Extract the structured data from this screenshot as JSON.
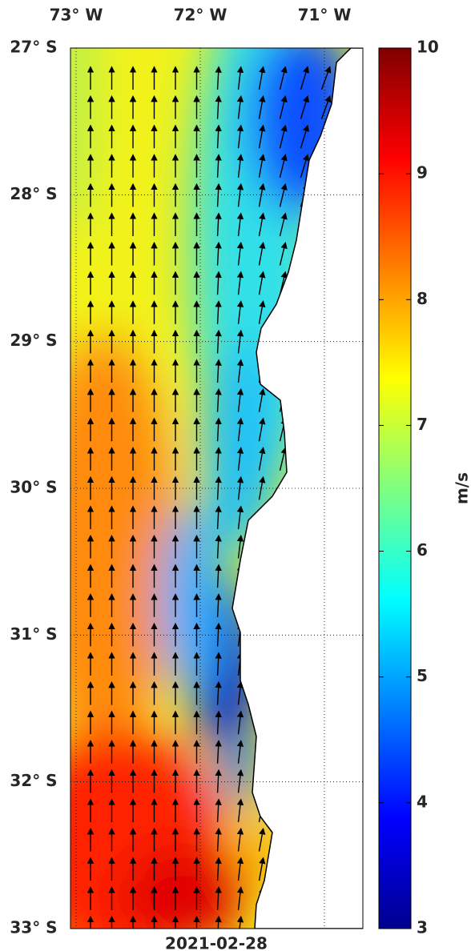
{
  "map": {
    "lon_ticks": [
      {
        "value": -73,
        "label": "73° W"
      },
      {
        "value": -72,
        "label": "72° W"
      },
      {
        "value": -71,
        "label": "71° W"
      }
    ],
    "lat_ticks": [
      {
        "value": -27,
        "label": "27° S"
      },
      {
        "value": -28,
        "label": "28° S"
      },
      {
        "value": -29,
        "label": "29° S"
      },
      {
        "value": -30,
        "label": "30° S"
      },
      {
        "value": -31,
        "label": "31° S"
      },
      {
        "value": -32,
        "label": "32° S"
      },
      {
        "value": -33,
        "label": "33° S"
      }
    ],
    "date": "2021-02-28",
    "colorbar": {
      "label": "m/s",
      "lim": [
        3,
        10
      ],
      "ticks": [
        3,
        4,
        5,
        6,
        7,
        8,
        9,
        10
      ]
    }
  }
}
